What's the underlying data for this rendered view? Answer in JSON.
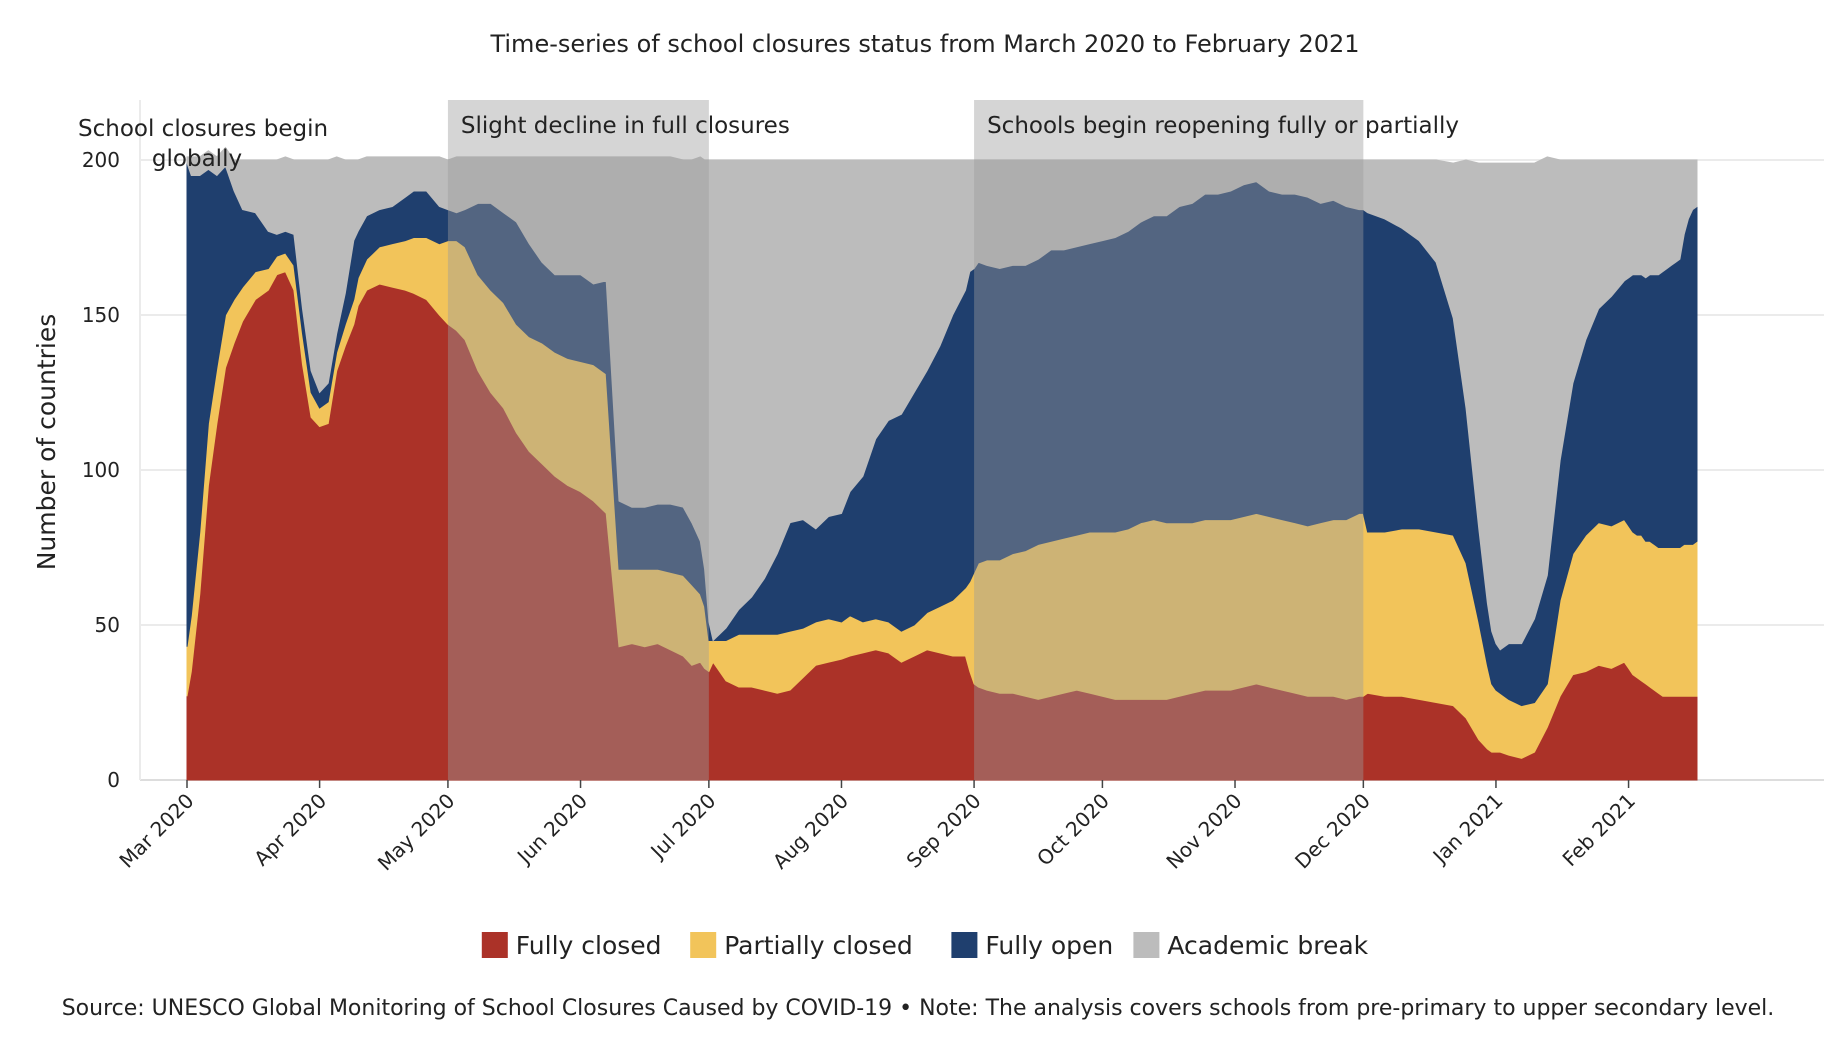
{
  "chart_data": {
    "type": "area",
    "stacked": true,
    "title": "Time-series of school closures status from March 2020 to February 2021",
    "xlabel": "",
    "ylabel": "Number of countries",
    "ylim": [
      0,
      200
    ],
    "yticks": [
      0,
      50,
      100,
      150,
      200
    ],
    "xtick_labels": [
      "Mar 2020",
      "Apr 2020",
      "May 2020",
      "Jun 2020",
      "Jul 2020",
      "Aug 2020",
      "Sep 2020",
      "Oct 2020",
      "Nov 2020",
      "Dec 2020",
      "Jan 2021",
      "Feb 2021"
    ],
    "xtick_days": [
      0,
      31,
      61,
      92,
      122,
      153,
      184,
      214,
      245,
      275,
      306,
      337
    ],
    "x_day_max": 353,
    "colors": {
      "fully_closed": "#ab3228",
      "partially_closed": "#f2c45a",
      "fully_open": "#1f3f6e",
      "academic_break": "#bcbcbc",
      "shade": "#9a9a9a"
    },
    "series_x_days": [
      0,
      1,
      3,
      5,
      7,
      9,
      11,
      13,
      16,
      19,
      21,
      23,
      25,
      27,
      29,
      31,
      33,
      35,
      37,
      39,
      40,
      42,
      45,
      48,
      51,
      53,
      56,
      59,
      61,
      63,
      65,
      68,
      71,
      74,
      77,
      80,
      83,
      86,
      89,
      92,
      95,
      98,
      101,
      104,
      107,
      110,
      113,
      116,
      118,
      120,
      121,
      122,
      123,
      126,
      129,
      132,
      135,
      138,
      141,
      144,
      147,
      150,
      153,
      155,
      158,
      161,
      164,
      167,
      170,
      173,
      176,
      179,
      182,
      183,
      184,
      185,
      187,
      190,
      193,
      196,
      199,
      202,
      205,
      208,
      211,
      214,
      217,
      220,
      223,
      226,
      229,
      232,
      235,
      238,
      241,
      244,
      247,
      250,
      253,
      256,
      259,
      262,
      265,
      268,
      271,
      274,
      275,
      276,
      280,
      284,
      288,
      292,
      296,
      299,
      302,
      304,
      305,
      306,
      307,
      309,
      312,
      315,
      318,
      321,
      324,
      327,
      330,
      333,
      336,
      337,
      338,
      339,
      340,
      341,
      342,
      343,
      344,
      345,
      346,
      347,
      348,
      349,
      350,
      351,
      352,
      353
    ],
    "series": [
      {
        "name": "Fully closed",
        "values": [
          27,
          35,
          60,
          95,
          115,
          133,
          141,
          148,
          155,
          158,
          163,
          164,
          158,
          134,
          117,
          114,
          115,
          132,
          140,
          147,
          153,
          158,
          160,
          159,
          158,
          157,
          155,
          150,
          147,
          145,
          142,
          132,
          125,
          120,
          112,
          106,
          102,
          98,
          95,
          93,
          90,
          86,
          43,
          44,
          43,
          44,
          42,
          40,
          37,
          38,
          36,
          35,
          38,
          32,
          30,
          30,
          29,
          28,
          29,
          33,
          37,
          38,
          39,
          40,
          41,
          42,
          41,
          38,
          40,
          42,
          41,
          40,
          40,
          35,
          31,
          30,
          29,
          28,
          28,
          27,
          26,
          27,
          28,
          29,
          28,
          27,
          26,
          26,
          26,
          26,
          26,
          27,
          28,
          29,
          29,
          29,
          30,
          31,
          30,
          29,
          28,
          27,
          27,
          27,
          26,
          27,
          27,
          28,
          27,
          27,
          26,
          25,
          24,
          20,
          13,
          10,
          9,
          9,
          9,
          8,
          7,
          9,
          17,
          27,
          34,
          35,
          37,
          36,
          38,
          36,
          34,
          33,
          32,
          31,
          30,
          29,
          28,
          27,
          27,
          27,
          27,
          27,
          27,
          27,
          27,
          27
        ],
        "color": "#ab3228"
      },
      {
        "name": "Partially closed",
        "values": [
          16,
          18,
          20,
          20,
          18,
          17,
          14,
          11,
          9,
          7,
          6,
          6,
          8,
          10,
          8,
          6,
          7,
          6,
          7,
          8,
          9,
          10,
          12,
          14,
          16,
          18,
          20,
          23,
          27,
          29,
          30,
          31,
          33,
          34,
          35,
          37,
          39,
          40,
          41,
          42,
          44,
          45,
          25,
          24,
          25,
          24,
          25,
          26,
          26,
          22,
          20,
          10,
          7,
          13,
          17,
          17,
          18,
          19,
          19,
          16,
          14,
          14,
          12,
          13,
          10,
          10,
          10,
          10,
          10,
          12,
          15,
          18,
          22,
          29,
          36,
          40,
          42,
          43,
          45,
          47,
          50,
          50,
          50,
          50,
          52,
          53,
          54,
          55,
          57,
          58,
          57,
          56,
          55,
          55,
          55,
          55,
          55,
          55,
          55,
          55,
          55,
          55,
          56,
          57,
          58,
          59,
          59,
          52,
          53,
          54,
          55,
          55,
          55,
          50,
          38,
          27,
          22,
          20,
          19,
          18,
          17,
          16,
          14,
          31,
          39,
          44,
          46,
          46,
          46,
          46,
          46,
          46,
          47,
          46,
          47,
          47,
          47,
          48,
          48,
          48,
          48,
          48,
          49,
          49,
          49,
          50
        ],
        "color": "#f2c45a"
      },
      {
        "name": "Fully open",
        "values": [
          156,
          142,
          115,
          82,
          62,
          48,
          35,
          25,
          19,
          12,
          7,
          7,
          10,
          8,
          7,
          5,
          6,
          6,
          10,
          19,
          15,
          14,
          12,
          12,
          14,
          15,
          15,
          12,
          10,
          9,
          12,
          23,
          28,
          29,
          33,
          30,
          26,
          25,
          27,
          28,
          26,
          30,
          22,
          20,
          20,
          21,
          22,
          22,
          20,
          17,
          12,
          6,
          0,
          4,
          8,
          12,
          18,
          26,
          35,
          35,
          30,
          33,
          35,
          40,
          47,
          58,
          65,
          70,
          75,
          78,
          84,
          92,
          96,
          100,
          98,
          97,
          95,
          94,
          93,
          92,
          92,
          94,
          93,
          93,
          93,
          94,
          95,
          96,
          97,
          98,
          99,
          102,
          103,
          105,
          105,
          106,
          107,
          107,
          105,
          105,
          106,
          106,
          103,
          103,
          101,
          98,
          98,
          103,
          101,
          97,
          93,
          87,
          70,
          50,
          30,
          20,
          17,
          15,
          14,
          18,
          20,
          27,
          35,
          45,
          55,
          63,
          69,
          74,
          77,
          80,
          83,
          84,
          84,
          85,
          86,
          87,
          88,
          89,
          90,
          91,
          92,
          93,
          100,
          105,
          108,
          108
        ],
        "color": "#1f3f6e"
      },
      {
        "name": "Academic break",
        "values": [
          2,
          6,
          6,
          6,
          6,
          6,
          10,
          16,
          17,
          23,
          24,
          24,
          24,
          48,
          68,
          75,
          72,
          57,
          43,
          26,
          23,
          19,
          17,
          16,
          13,
          11,
          11,
          16,
          16,
          18,
          17,
          15,
          15,
          18,
          21,
          28,
          34,
          38,
          38,
          38,
          41,
          40,
          111,
          113,
          113,
          112,
          112,
          112,
          117,
          124,
          132,
          149,
          155,
          151,
          145,
          141,
          135,
          127,
          117,
          116,
          119,
          115,
          114,
          107,
          102,
          90,
          84,
          82,
          75,
          68,
          60,
          50,
          42,
          36,
          35,
          33,
          34,
          35,
          34,
          34,
          32,
          29,
          29,
          28,
          27,
          26,
          25,
          23,
          20,
          18,
          18,
          15,
          14,
          11,
          11,
          10,
          8,
          7,
          10,
          11,
          11,
          12,
          14,
          13,
          15,
          16,
          16,
          17,
          19,
          22,
          26,
          33,
          50,
          80,
          118,
          142,
          151,
          155,
          157,
          155,
          155,
          147,
          135,
          97,
          72,
          58,
          48,
          44,
          39,
          38,
          37,
          37,
          37,
          38,
          37,
          37,
          37,
          36,
          35,
          34,
          33,
          32,
          24,
          19,
          16,
          15
        ],
        "color": "#bcbcbc"
      }
    ],
    "shaded_regions": [
      {
        "label": "Slight decline in full closures",
        "start_day": 61,
        "end_day": 122
      },
      {
        "label": "Schools begin reopening fully or partially",
        "start_day": 184,
        "end_day": 275
      }
    ],
    "annotations": [
      {
        "lines": [
          "School closures begin",
          "globally"
        ]
      }
    ],
    "legend": {
      "position": "bottom",
      "items": [
        {
          "label": "Fully closed",
          "color": "#ab3228"
        },
        {
          "label": "Partially closed",
          "color": "#f2c45a"
        },
        {
          "label": "Fully open",
          "color": "#1f3f6e"
        },
        {
          "label": "Academic break",
          "color": "#bcbcbc"
        }
      ]
    },
    "source_note": "Source: UNESCO Global Monitoring of School Closures Caused by COVID-19 • Note: The analysis covers schools from pre-primary to upper secondary level."
  }
}
